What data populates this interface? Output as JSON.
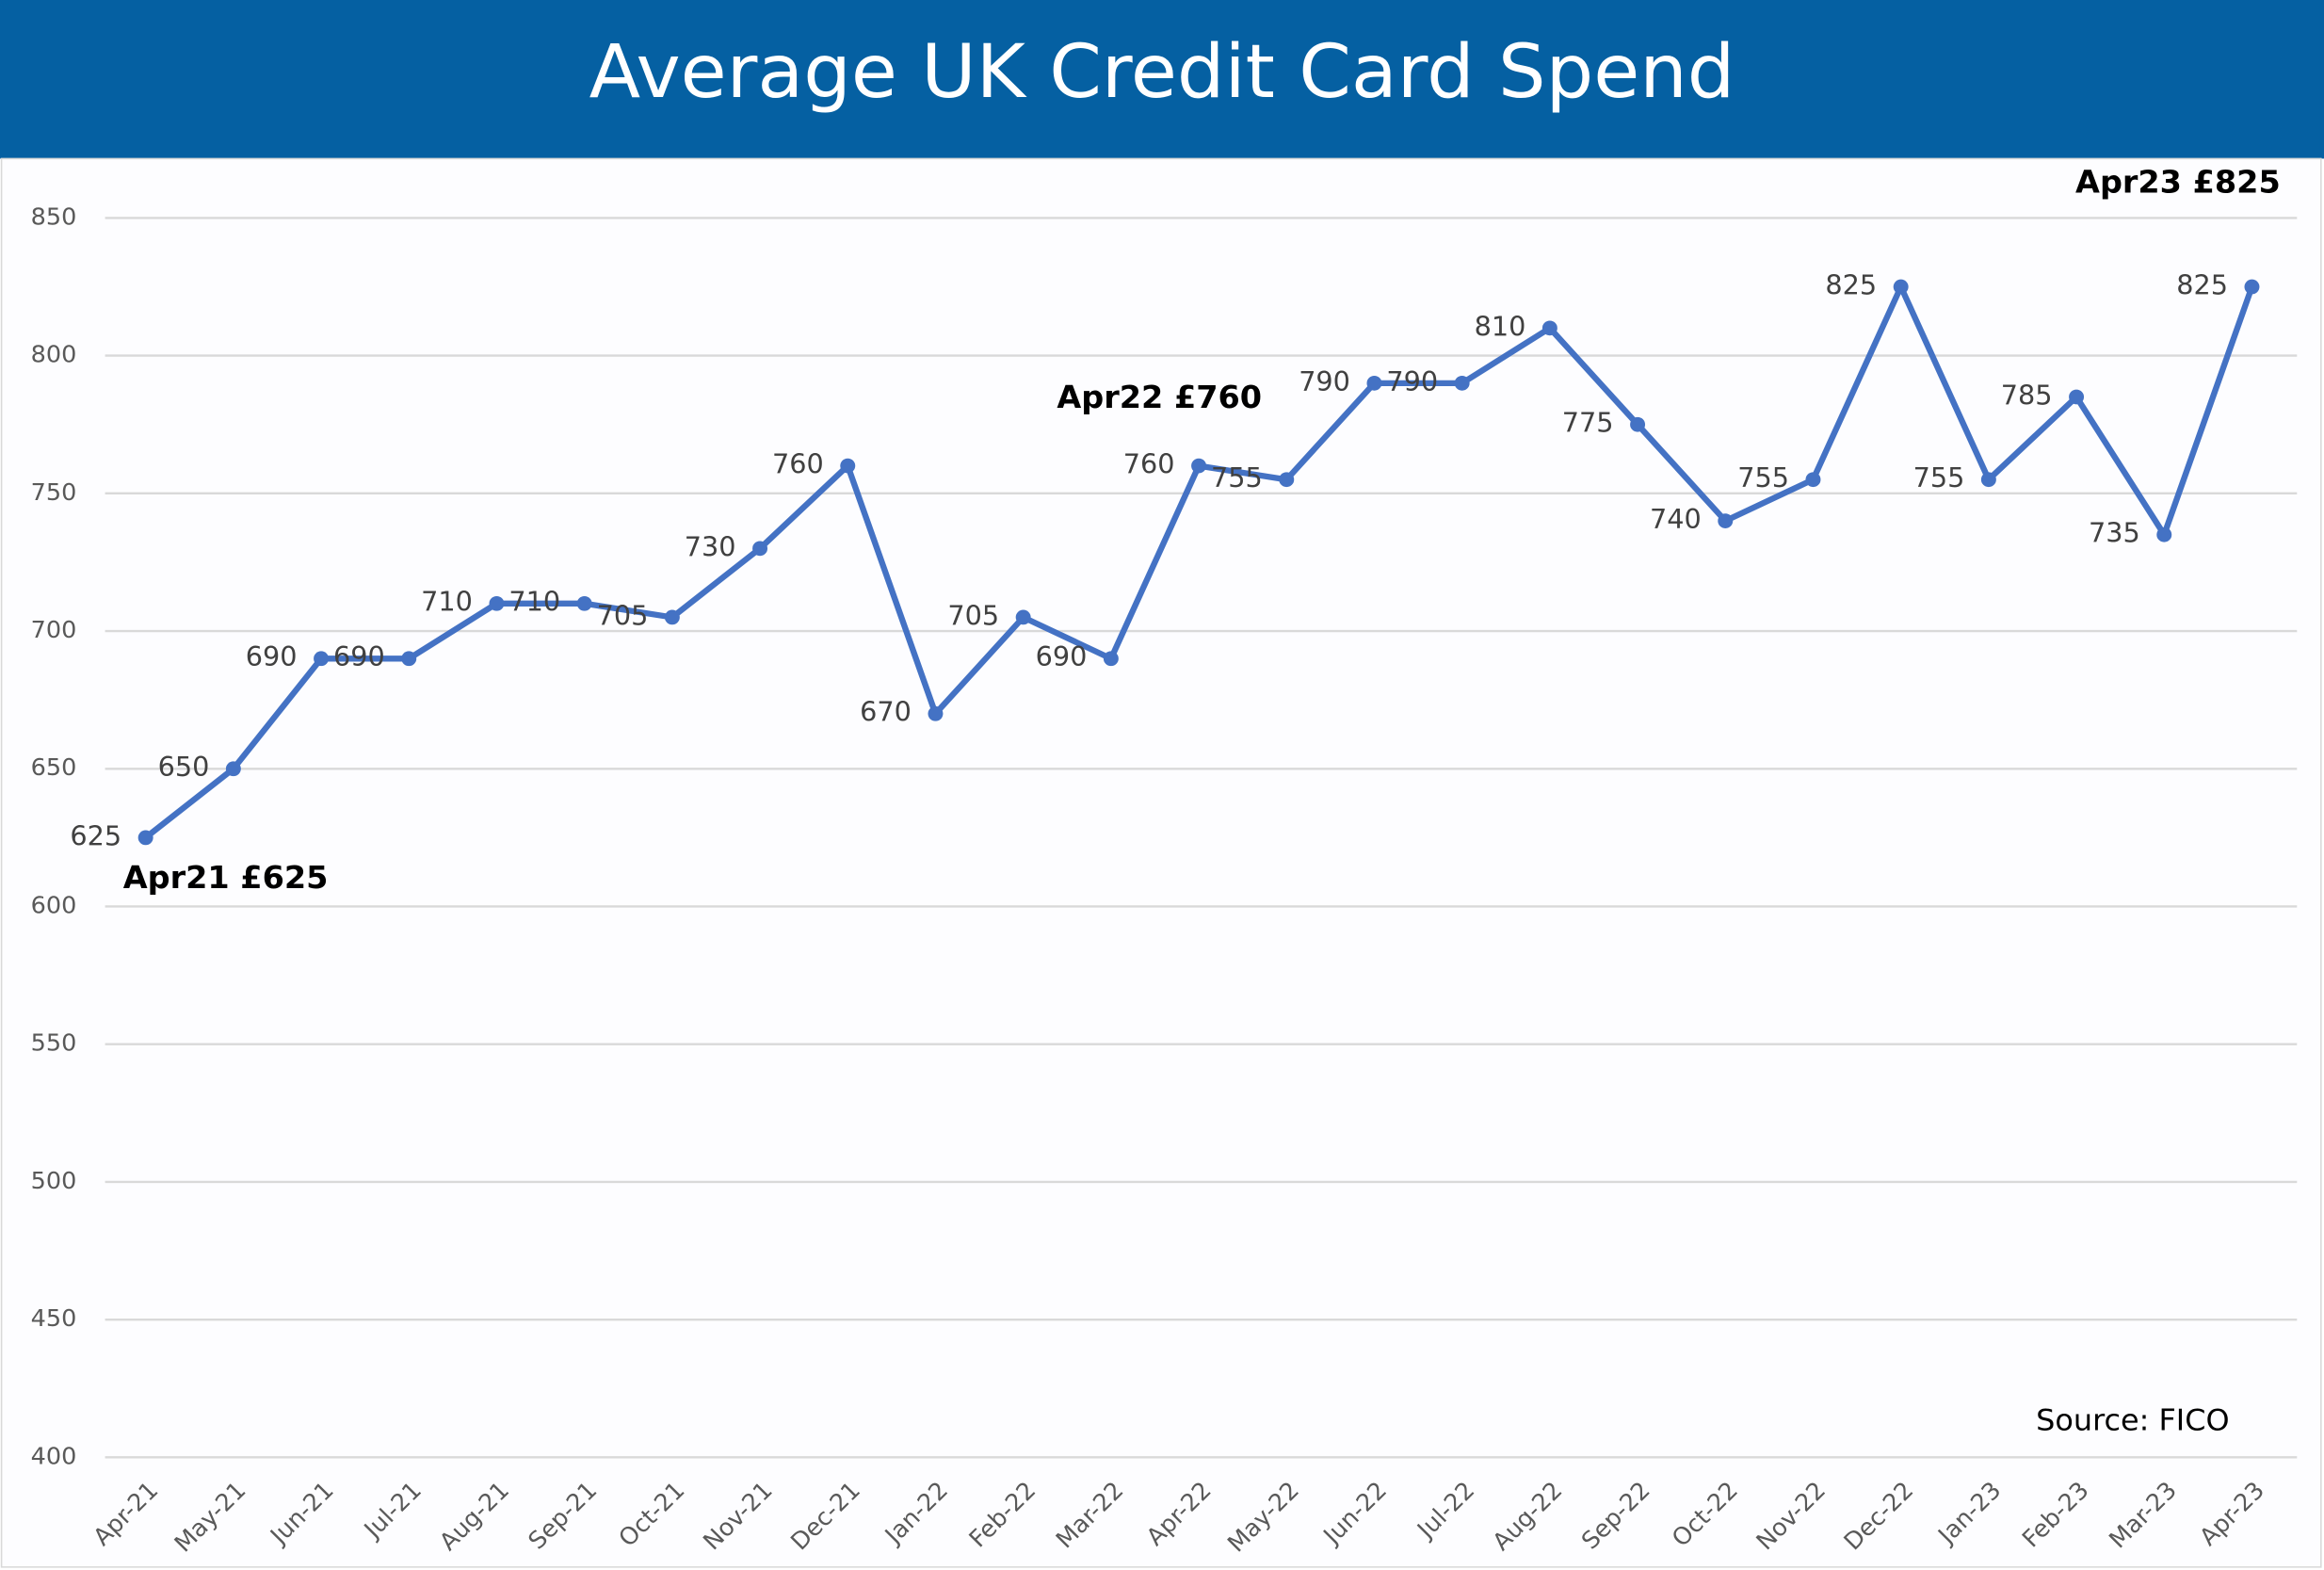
{
  "chart_data": {
    "type": "line",
    "title": "Average UK Credit Card Spend",
    "categories": [
      "Apr-21",
      "May-21",
      "Jun-21",
      "Jul-21",
      "Aug-21",
      "Sep-21",
      "Oct-21",
      "Nov-21",
      "Dec-21",
      "Jan-22",
      "Feb-22",
      "Mar-22",
      "Apr-22",
      "May-22",
      "Jun-22",
      "Jul-22",
      "Aug-22",
      "Sep-22",
      "Oct-22",
      "Nov-22",
      "Dec-22",
      "Jan-23",
      "Feb-23",
      "Mar-23",
      "Apr-23"
    ],
    "values": [
      625,
      650,
      690,
      690,
      710,
      710,
      705,
      730,
      760,
      670,
      705,
      690,
      760,
      755,
      790,
      790,
      810,
      775,
      740,
      755,
      825,
      755,
      785,
      735,
      825
    ],
    "color": "#4472c4",
    "ylim": [
      400,
      850
    ],
    "yticks": [
      400,
      450,
      500,
      550,
      600,
      650,
      700,
      750,
      800,
      850
    ],
    "grid": true,
    "annotations": [
      "Apr21 £625",
      "Apr22 £760",
      "Apr23 £825",
      "Source: FICO"
    ]
  }
}
